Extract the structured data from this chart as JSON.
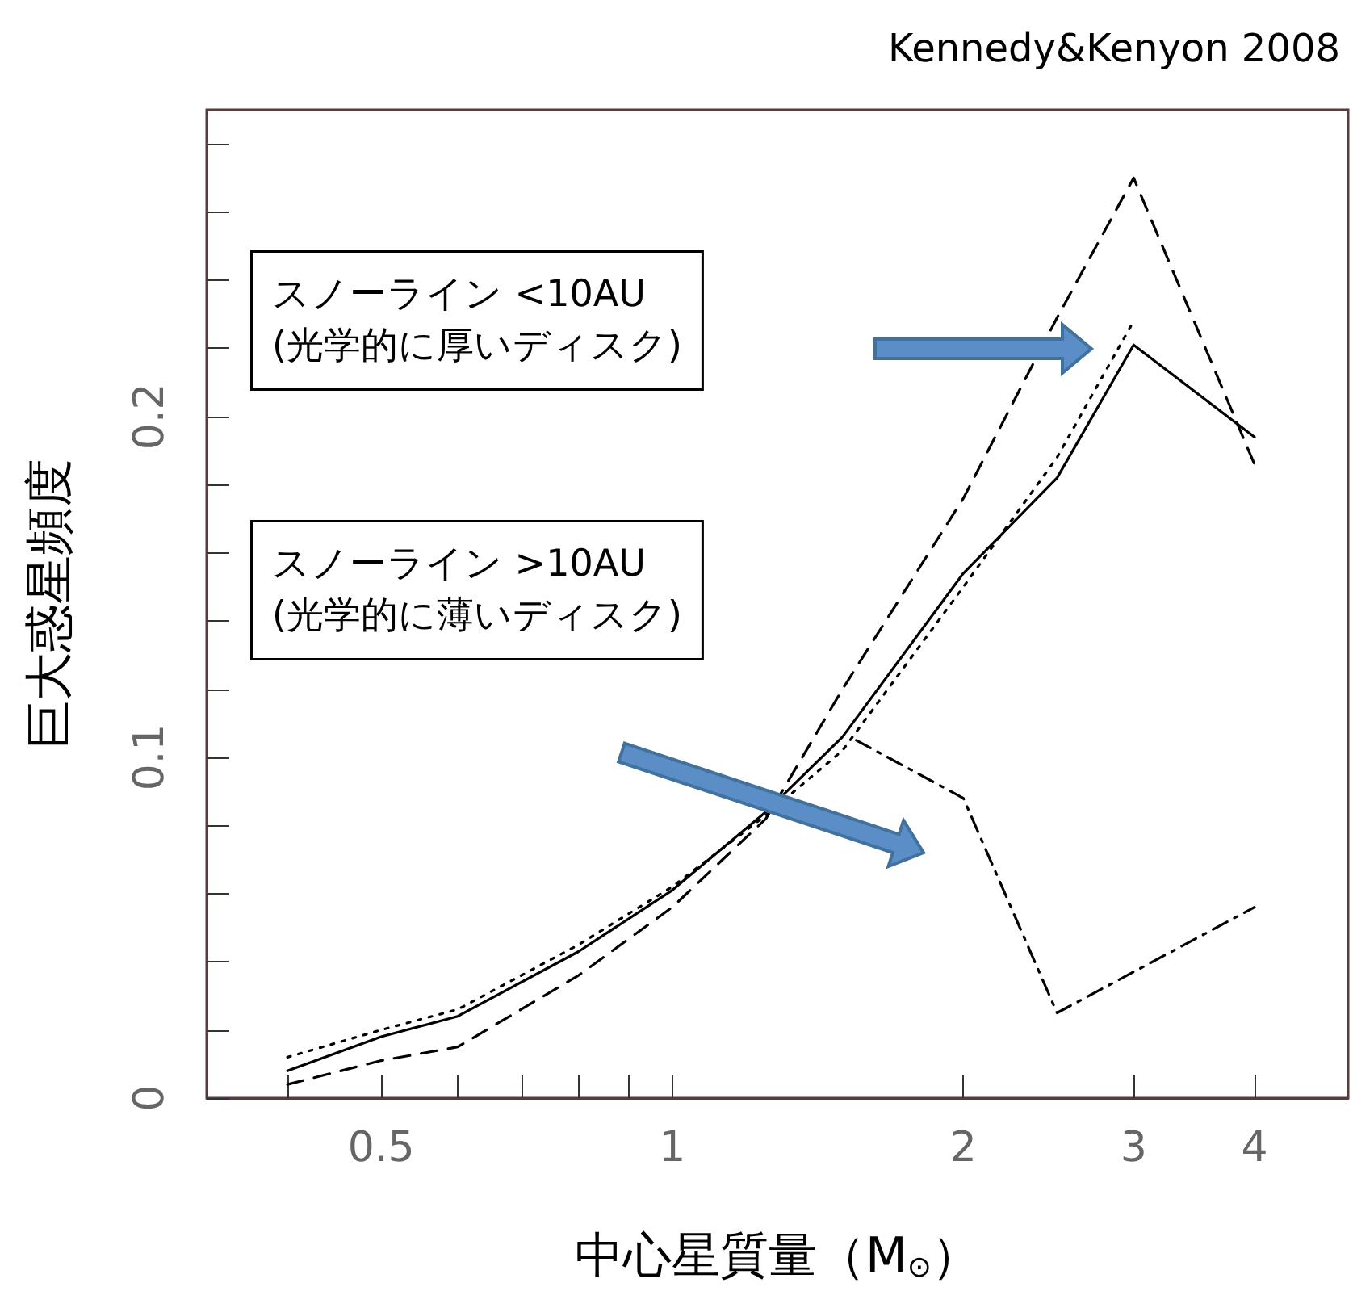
{
  "chart_data": {
    "type": "line",
    "xlabel": "中心星質量（M$_{⊙}$）",
    "ylabel": "巨大惑星頻度",
    "annotations": [
      "Kennedy&Kenyon 2008",
      "スノーライン <10AU\n(光学的に厚いディスク)",
      "スノーライン >10AU\n(光学的に薄いディスク)"
    ],
    "log": "x",
    "xlim": [
      0.33,
      5
    ],
    "ylim": [
      0,
      0.29
    ],
    "xticks": [
      {
        "value": 0.4,
        "label": null
      },
      0.5,
      {
        "value": 0.6,
        "label": null
      },
      {
        "value": 0.7,
        "label": null
      },
      {
        "value": 0.8,
        "label": null
      },
      {
        "value": 0.9,
        "label": null
      },
      1,
      2,
      3,
      4
    ],
    "yticks": [
      0,
      {
        "value": 0.02,
        "label": null
      },
      {
        "value": 0.04,
        "label": null
      },
      {
        "value": 0.06,
        "label": null
      },
      {
        "value": 0.08,
        "label": null
      },
      0.1,
      {
        "value": 0.12,
        "label": null
      },
      {
        "value": 0.14,
        "label": null
      },
      {
        "value": 0.16,
        "label": null
      },
      {
        "value": 0.18,
        "label": null
      },
      0.2,
      {
        "value": 0.22,
        "label": null
      },
      {
        "value": 0.24,
        "label": null
      },
      {
        "value": 0.26,
        "label": null
      },
      {
        "value": 0.28,
        "label": null
      }
    ],
    "grid": false,
    "marker": "none",
    "series": [
      {
        "color": "#000000",
        "line_style": "solid",
        "x": [
          0.4,
          0.5,
          0.6,
          0.8,
          1,
          1.25,
          1.5,
          2,
          2.5,
          3,
          4
        ],
        "values": [
          0.008,
          0.018,
          0.024,
          0.043,
          0.061,
          0.084,
          0.106,
          0.154,
          0.182,
          0.221,
          0.194
        ]
      },
      {
        "color": "#000000",
        "line_style": "dotted",
        "x": [
          0.4,
          0.5,
          0.6,
          0.8,
          1,
          1.25,
          1.5,
          2,
          2.5,
          3
        ],
        "values": [
          0.012,
          0.02,
          0.026,
          0.045,
          0.062,
          0.083,
          0.102,
          0.15,
          0.188,
          0.228
        ]
      },
      {
        "color": "#000000",
        "line_style": "dashed",
        "x": [
          0.4,
          0.5,
          0.6,
          0.8,
          1,
          1.25,
          1.5,
          2,
          2.5,
          3,
          4
        ],
        "values": [
          0.004,
          0.011,
          0.015,
          0.036,
          0.056,
          0.082,
          0.12,
          0.176,
          0.229,
          0.27,
          0.186
        ]
      },
      {
        "color": "#000000",
        "line_style": "dashdot",
        "x": [
          1.55,
          2,
          2.5,
          4
        ],
        "values": [
          0.105,
          0.088,
          0.025,
          0.056
        ]
      }
    ]
  }
}
